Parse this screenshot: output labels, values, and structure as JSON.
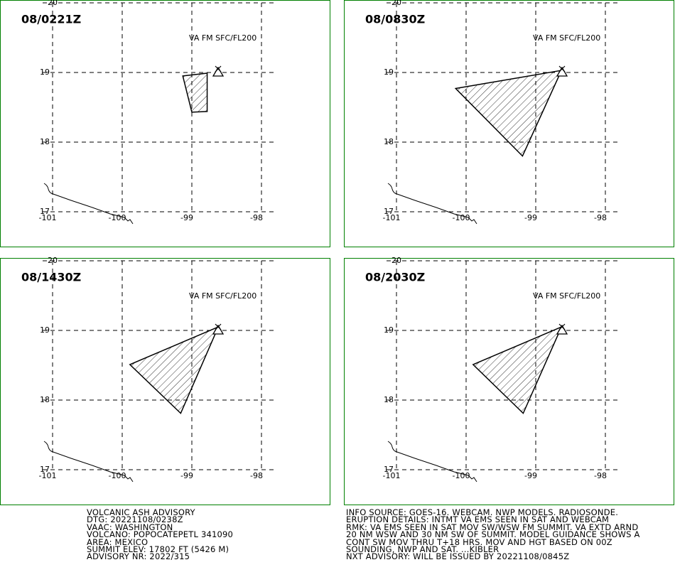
{
  "grid": {
    "lat": [
      17,
      18,
      19,
      20
    ],
    "lon": [
      -101,
      -100,
      -99,
      -98
    ]
  },
  "panels": [
    {
      "time": "08/0221Z",
      "level": "VA FM SFC/FL200",
      "polygon": {
        "lon": [
          -99.13,
          -98.78,
          -98.78,
          -99.0
        ],
        "lat": [
          18.95,
          18.99,
          18.44,
          18.43
        ]
      }
    },
    {
      "time": "08/0830Z",
      "level": "VA FM SFC/FL200",
      "polygon": {
        "lon": [
          -100.15,
          -98.63,
          -99.19
        ],
        "lat": [
          18.77,
          19.03,
          17.8
        ]
      }
    },
    {
      "time": "08/1430Z",
      "level": "VA FM SFC/FL200",
      "polygon": {
        "lon": [
          -99.89,
          -98.62,
          -99.16
        ],
        "lat": [
          18.51,
          19.05,
          17.81
        ]
      }
    },
    {
      "time": "08/2030Z",
      "level": "VA FM SFC/FL200",
      "polygon": {
        "lon": [
          -99.9,
          -98.63,
          -99.18
        ],
        "lat": [
          18.51,
          19.05,
          17.81
        ]
      }
    }
  ],
  "advisory": {
    "left": [
      "VOLCANIC ASH ADVISORY",
      "DTG: 20221108/0238Z",
      "VAAC: WASHINGTON",
      "VOLCANO: POPOCATEPETL 341090",
      "AREA: MEXICO",
      "SUMMIT ELEV: 17802 FT (5426 M)",
      "ADVISORY NR: 2022/315"
    ],
    "right": [
      "INFO SOURCE: GOES-16. WEBCAM. NWP MODELS. RADIOSONDE.",
      "ERUPTION DETAILS: INTMT VA EMS SEEN IN SAT AND WEBCAM",
      "RMK: VA EMS SEEN IN SAT MOV SW/WSW FM SUMMIT. VA EXTD ARND",
      "20 NM WSW AND 30 NM SW OF SUMMIT. MODEL GUIDANCE SHOWS A",
      "CONT SW MOV THRU T+18 HRS. MOV AND HGT BASED ON 00Z",
      "SOUNDING, NWP AND SAT. ...KIBLER",
      "NXT ADVISORY: WILL BE ISSUED BY 20221108/0845Z"
    ]
  }
}
